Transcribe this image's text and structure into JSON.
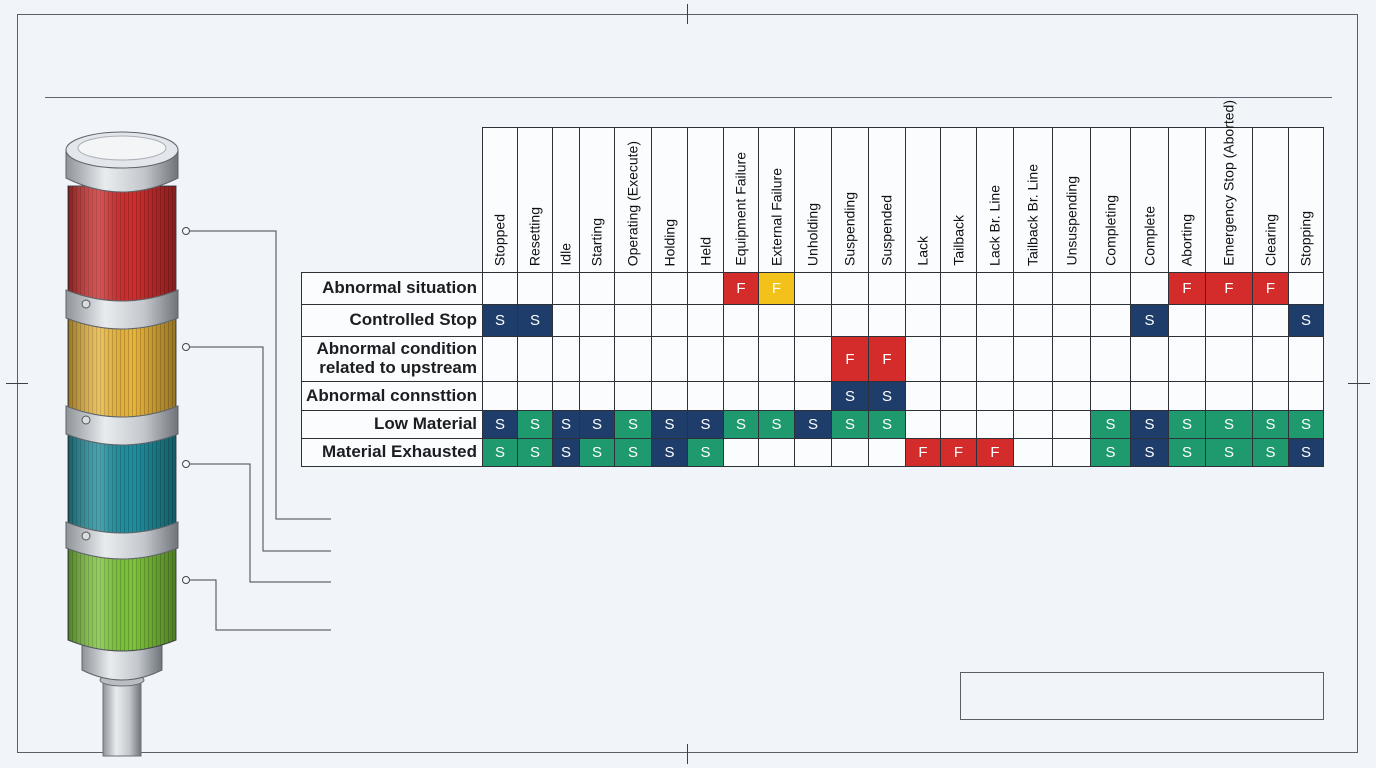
{
  "columns": [
    "Stopped",
    "Resetting",
    "Idle",
    "Starting",
    "Operating (Execute)",
    "Holding",
    "Held",
    "Equipment Failure",
    "External Failure",
    "Unholding",
    "Suspending",
    "Suspended",
    "Lack",
    "Tailback",
    "Lack Br. Line",
    "Tailback Br. Line",
    "Unsuspending",
    "Completing",
    "Complete",
    "Aborting",
    "Emergency Stop (Aborted)",
    "Clearing",
    "Stopping"
  ],
  "rows": [
    {
      "label": "Abnormal situation",
      "cells": [
        "",
        "",
        "",
        "",
        "",
        "",
        "",
        "F:red",
        "F:yellow",
        "",
        "",
        "",
        "",
        "",
        "",
        "",
        "",
        "",
        "",
        "F:red",
        "F:red",
        "F:red",
        ""
      ]
    },
    {
      "label": "Controlled Stop",
      "cells": [
        "S:navy",
        "S:navy",
        "",
        "",
        "",
        "",
        "",
        "",
        "",
        "",
        "",
        "",
        "",
        "",
        "",
        "",
        "",
        "",
        "S:navy",
        "",
        "",
        "",
        "S:navy"
      ]
    },
    {
      "label": "Abnormal condition related to upstream",
      "cells": [
        "",
        "",
        "",
        "",
        "",
        "",
        "",
        "",
        "",
        "",
        "F:red",
        "F:red",
        "",
        "",
        "",
        "",
        "",
        "",
        "",
        "",
        "",
        "",
        ""
      ]
    },
    {
      "label": "Abnormal connsttion",
      "cells": [
        "",
        "",
        "",
        "",
        "",
        "",
        "",
        "",
        "",
        "",
        "S:navy",
        "S:navy",
        "",
        "",
        "",
        "",
        "",
        "",
        "",
        "",
        "",
        "",
        ""
      ]
    },
    {
      "label": "Low Material",
      "cells": [
        "S:navy",
        "S:green",
        "S:navy",
        "S:navy",
        "S:green",
        "S:navy",
        "S:navy",
        "S:green",
        "S:green",
        "S:navy",
        "S:green",
        "S:green",
        "",
        "",
        "",
        "",
        "",
        "S:green",
        "S:navy",
        "S:green",
        "S:green",
        "S:green",
        "S:green"
      ]
    },
    {
      "label": "Material Exhausted",
      "cells": [
        "S:green",
        "S:green",
        "S:navy",
        "S:green",
        "S:green",
        "S:navy",
        "S:green",
        "",
        "",
        "",
        "",
        "",
        "F:red",
        "F:red",
        "F:red",
        "",
        "",
        "S:green",
        "S:navy",
        "S:green",
        "S:green",
        "S:green",
        "S:navy"
      ]
    }
  ],
  "colors": {
    "red": "#d42b2b",
    "yellow": "#f2c21b",
    "navy": "#1f3d6a",
    "green": "#1e9a6e"
  },
  "tower": {
    "lights": [
      {
        "name": "red-light",
        "color": "#cf2e2e"
      },
      {
        "name": "amber-light",
        "color": "#e8b43a"
      },
      {
        "name": "teal-light",
        "color": "#1f8f9e"
      },
      {
        "name": "green-light",
        "color": "#7cc43a"
      }
    ]
  }
}
